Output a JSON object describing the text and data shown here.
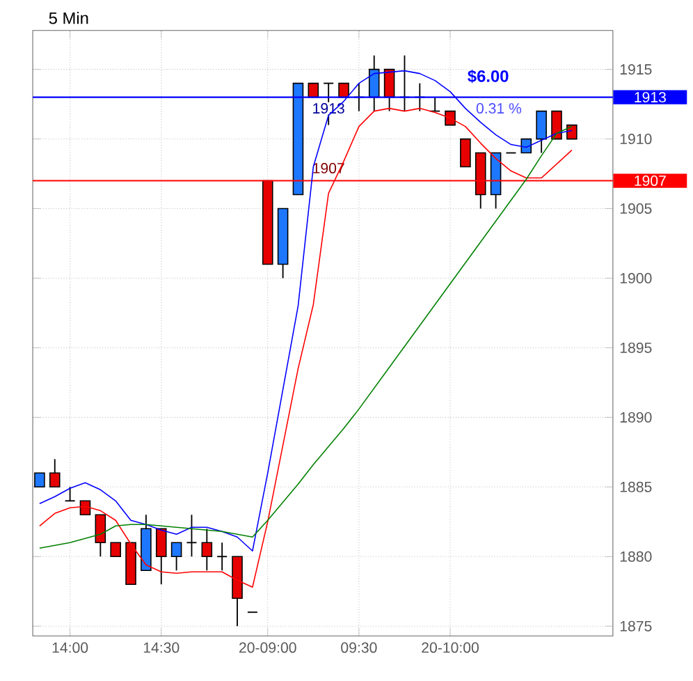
{
  "chart_data": {
    "type": "candlestick",
    "title": "5 Min",
    "categories": [
      null,
      null,
      "14:00",
      null,
      null,
      null,
      null,
      null,
      "14:30",
      null,
      null,
      null,
      null,
      null,
      null,
      "20-09:00",
      null,
      null,
      null,
      null,
      null,
      "09:30",
      null,
      null,
      null,
      null,
      null,
      "20-10:00",
      null,
      null,
      null,
      null,
      null,
      null,
      null,
      null
    ],
    "ohlc": [
      [
        1885,
        1886,
        1885,
        1886
      ],
      [
        1886,
        1887,
        1885,
        1885
      ],
      [
        1884,
        1885,
        1884,
        1884
      ],
      [
        1884,
        1884,
        1883,
        1883
      ],
      [
        1883,
        1883,
        1880,
        1881
      ],
      [
        1881,
        1881,
        1880,
        1880
      ],
      [
        1881,
        1881,
        1878,
        1878
      ],
      [
        1879,
        1883,
        1879,
        1882
      ],
      [
        1882,
        1882,
        1878,
        1880
      ],
      [
        1880,
        1881,
        1879,
        1881
      ],
      [
        1881,
        1883,
        1880,
        1881
      ],
      [
        1881,
        1882,
        1879,
        1880
      ],
      [
        1880,
        1881,
        1879,
        1880
      ],
      [
        1880,
        1880,
        1875,
        1877
      ],
      [
        1876,
        1876,
        1876,
        1876
      ],
      [
        1907,
        1907,
        1901,
        1901
      ],
      [
        1901,
        1905,
        1900,
        1905
      ],
      [
        1906,
        1914,
        1906,
        1914
      ],
      [
        1914,
        1914,
        1913,
        1913
      ],
      [
        1914,
        1914,
        1911,
        1914
      ],
      [
        1914,
        1914,
        1913,
        1913
      ],
      [
        1913,
        1914,
        1912,
        1913
      ],
      [
        1913,
        1916,
        1912,
        1915
      ],
      [
        1915,
        1915,
        1912,
        1913
      ],
      [
        1913,
        1916,
        1912,
        1913
      ],
      [
        1913,
        1914,
        1912,
        1913
      ],
      [
        1912,
        1913,
        1912,
        1912
      ],
      [
        1912,
        1912,
        1911,
        1911
      ],
      [
        1910,
        1910,
        1908,
        1908
      ],
      [
        1909,
        1909,
        1905,
        1906
      ],
      [
        1906,
        1909,
        1905,
        1909
      ],
      [
        1909,
        1909,
        1909,
        1909
      ],
      [
        1909,
        1910,
        1909,
        1910
      ],
      [
        1910,
        1912,
        1909,
        1912
      ],
      [
        1912,
        1912,
        1910,
        1910
      ],
      [
        1911,
        1911,
        1910,
        1910
      ]
    ],
    "series": [
      {
        "type": "line",
        "color": "#0000ff",
        "values": [
          1883.8,
          1884.3,
          1884.9,
          1885.3,
          1884.8,
          1884.0,
          1882.6,
          1882.3,
          1881.9,
          1881.6,
          1882.1,
          1882.1,
          1881.8,
          1881.4,
          1880.4,
          1886,
          1892,
          1898,
          1908,
          1911.7,
          1912.7,
          1914.0,
          1914.7,
          1914.8,
          1914.9,
          1914.7,
          1914.2,
          1913.4,
          1912.2,
          1911.2,
          1910.3,
          1909.6,
          1909.4,
          1909.9,
          1910.4,
          1910.6
        ]
      },
      {
        "type": "line",
        "color": "#ff0000",
        "values": [
          1882.2,
          1883.1,
          1883.5,
          1883.6,
          1883.3,
          1882.6,
          1880.9,
          1879.4,
          1878.9,
          1878.8,
          1878.9,
          1878.9,
          1878.9,
          1878.3,
          1877.8,
          1882.5,
          1888,
          1893.5,
          1898.1,
          1906.1,
          1908.4,
          1910.9,
          1912.0,
          1912.2,
          1912.0,
          1912.2,
          1911.9,
          1911.5,
          1910.9,
          1909.7,
          1908.6,
          1907.7,
          1907.2,
          1907.2,
          1908.2,
          1909.2
        ]
      },
      {
        "type": "line",
        "color": "#008000",
        "values": [
          1880.6,
          1880.8,
          1881.0,
          1881.3,
          1881.6,
          1882.2,
          1882.3,
          1882.3,
          1882.2,
          1882.1,
          1882.0,
          1881.9,
          1881.8,
          1881.6,
          1881.4,
          1882.6,
          1883.9,
          1885.2,
          1886.6,
          1887.9,
          1889.2,
          1890.6,
          1892.1,
          1893.6,
          1895.1,
          1896.6,
          1898.1,
          1899.6,
          1901.1,
          1902.6,
          1904.1,
          1905.6,
          1907.1,
          1908.8,
          1910.4,
          1910.9
        ]
      }
    ],
    "ylim": [
      1874.3,
      1917.8
    ],
    "yticks": [
      1875,
      1880,
      1885,
      1890,
      1895,
      1900,
      1905,
      1910,
      1915
    ],
    "grid": true,
    "ref_lines": [
      {
        "axis": "y",
        "value": 1913,
        "label": "1913",
        "color": "#0000ff"
      },
      {
        "axis": "y",
        "value": 1907,
        "label": "1907",
        "color": "#ff0000"
      }
    ],
    "annotations": [
      "$6.00",
      "0.31 %",
      "1913",
      "1907"
    ]
  }
}
